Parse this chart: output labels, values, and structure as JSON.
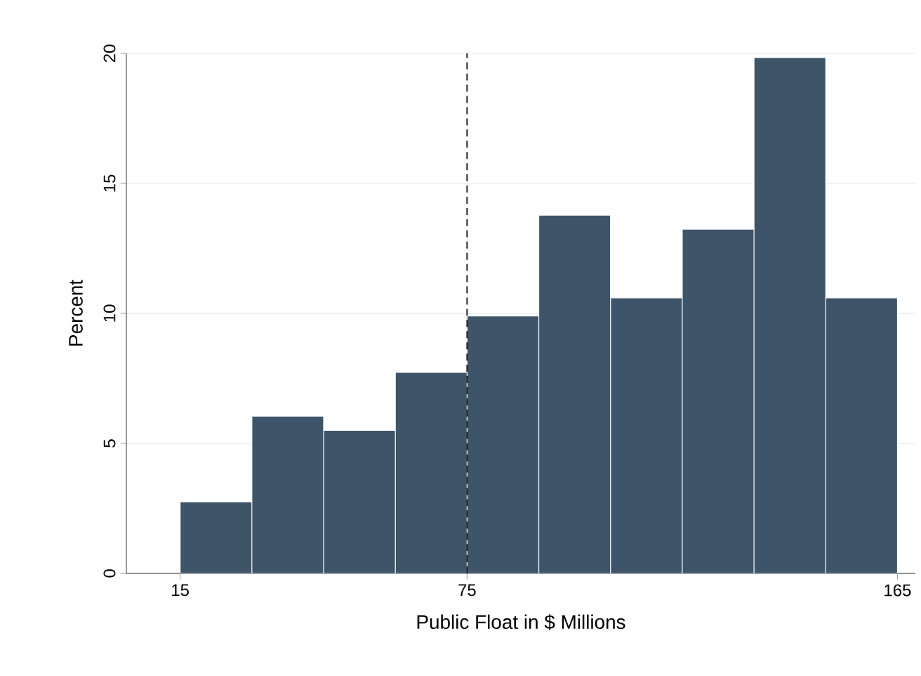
{
  "chart_data": {
    "type": "histogram",
    "xlabel": "Public Float in $ Millions",
    "ylabel": "Percent",
    "bins": [
      15,
      30,
      45,
      60,
      75,
      90,
      105,
      120,
      135,
      150,
      165
    ],
    "values": [
      2.75,
      6.05,
      5.5,
      7.73,
      9.9,
      13.78,
      10.6,
      13.24,
      19.84,
      10.6
    ],
    "color": "#3e5468",
    "xlim": [
      3.75,
      168.75
    ],
    "ylim": [
      0,
      20
    ],
    "xticks": [
      15,
      75,
      165
    ],
    "yticks": [
      0,
      5,
      10,
      15,
      20
    ],
    "grid": "y",
    "ref_lines": [
      {
        "axis": "x",
        "value": 75,
        "color": "#222222",
        "line_style": "dashed"
      }
    ]
  }
}
